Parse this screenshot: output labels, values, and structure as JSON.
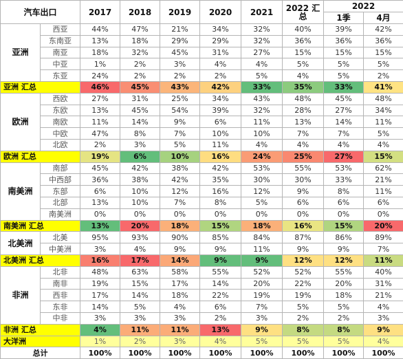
{
  "header": {
    "title": "汽车出口",
    "years": [
      "2017",
      "2018",
      "2019",
      "2020",
      "2021"
    ],
    "summary_2022": "2022 汇总",
    "year_2022": "2022",
    "sub": [
      "1季",
      "4月"
    ]
  },
  "groups": [
    {
      "region": "亚洲",
      "rows": [
        {
          "name": "西亚",
          "values": [
            "44%",
            "47%",
            "21%",
            "34%",
            "32%",
            "40%",
            "39%",
            "42%"
          ]
        },
        {
          "name": "东南亚",
          "values": [
            "13%",
            "18%",
            "29%",
            "29%",
            "32%",
            "36%",
            "36%",
            "36%"
          ]
        },
        {
          "name": "南亚",
          "values": [
            "18%",
            "32%",
            "45%",
            "31%",
            "27%",
            "15%",
            "15%",
            "15%"
          ]
        },
        {
          "name": "中亚",
          "values": [
            "1%",
            "2%",
            "3%",
            "4%",
            "4%",
            "5%",
            "5%",
            "5%"
          ]
        },
        {
          "name": "东亚",
          "values": [
            "24%",
            "2%",
            "2%",
            "2%",
            "5%",
            "4%",
            "5%",
            "2%"
          ]
        }
      ],
      "summary": {
        "label": "亚洲 汇总",
        "values": [
          "46%",
          "45%",
          "43%",
          "42%",
          "33%",
          "35%",
          "33%",
          "41%"
        ],
        "colors": [
          "#f8696b",
          "#f98e73",
          "#fbb57a",
          "#fdd17f",
          "#63be7b",
          "#8ccb7e",
          "#63be7b",
          "#ffe383"
        ]
      }
    },
    {
      "region": "欧洲",
      "rows": [
        {
          "name": "西欧",
          "values": [
            "27%",
            "31%",
            "25%",
            "34%",
            "43%",
            "48%",
            "45%",
            "48%"
          ]
        },
        {
          "name": "东欧",
          "values": [
            "13%",
            "45%",
            "54%",
            "39%",
            "32%",
            "28%",
            "27%",
            "34%"
          ]
        },
        {
          "name": "南欧",
          "values": [
            "11%",
            "14%",
            "9%",
            "6%",
            "11%",
            "13%",
            "14%",
            "11%"
          ]
        },
        {
          "name": "中欧",
          "values": [
            "47%",
            "8%",
            "7%",
            "10%",
            "10%",
            "7%",
            "7%",
            "5%"
          ]
        },
        {
          "name": "北欧",
          "values": [
            "2%",
            "3%",
            "5%",
            "11%",
            "4%",
            "4%",
            "4%",
            "4%"
          ]
        }
      ],
      "summary": {
        "label": "欧洲 汇总",
        "values": [
          "19%",
          "6%",
          "10%",
          "16%",
          "24%",
          "25%",
          "27%",
          "15%"
        ],
        "colors": [
          "#e5e483",
          "#63be7b",
          "#a6d27f",
          "#fedd81",
          "#fa9c75",
          "#f98870",
          "#f8696b",
          "#d3df82"
        ]
      }
    },
    {
      "region": "南美洲",
      "rows": [
        {
          "name": "南部",
          "values": [
            "45%",
            "42%",
            "38%",
            "42%",
            "53%",
            "55%",
            "53%",
            "62%"
          ]
        },
        {
          "name": "中西部",
          "values": [
            "36%",
            "38%",
            "42%",
            "35%",
            "30%",
            "30%",
            "33%",
            "21%"
          ]
        },
        {
          "name": "东部",
          "values": [
            "6%",
            "10%",
            "12%",
            "16%",
            "12%",
            "9%",
            "8%",
            "11%"
          ]
        },
        {
          "name": "北部",
          "values": [
            "13%",
            "10%",
            "7%",
            "8%",
            "5%",
            "6%",
            "6%",
            "6%"
          ]
        },
        {
          "name": "南美洲",
          "values": [
            "0%",
            "0%",
            "0%",
            "0%",
            "0%",
            "0%",
            "0%",
            "0%"
          ]
        }
      ],
      "summary": {
        "label": "南美洲 汇总",
        "values": [
          "13%",
          "20%",
          "18%",
          "15%",
          "18%",
          "16%",
          "15%",
          "20%"
        ],
        "colors": [
          "#63be7b",
          "#f8696b",
          "#fbb079",
          "#b0d580",
          "#fbb079",
          "#e9e583",
          "#b0d580",
          "#f8696b"
        ]
      }
    },
    {
      "region": "北美洲",
      "rows": [
        {
          "name": "北美",
          "values": [
            "95%",
            "93%",
            "90%",
            "85%",
            "84%",
            "87%",
            "86%",
            "89%"
          ]
        },
        {
          "name": "中美洲",
          "values": [
            "3%",
            "4%",
            "9%",
            "9%",
            "11%",
            "9%",
            "9%",
            "7%"
          ]
        }
      ],
      "summary": {
        "label": "北美洲 汇总",
        "values": [
          "16%",
          "17%",
          "14%",
          "9%",
          "9%",
          "12%",
          "12%",
          "11%"
        ],
        "colors": [
          "#f97f6f",
          "#f8696b",
          "#fba877",
          "#63be7b",
          "#63be7b",
          "#fee082",
          "#fee082",
          "#c9db81"
        ]
      }
    },
    {
      "region": "非洲",
      "rows": [
        {
          "name": "北非",
          "values": [
            "48%",
            "63%",
            "58%",
            "55%",
            "52%",
            "52%",
            "55%",
            "40%"
          ]
        },
        {
          "name": "南非",
          "values": [
            "19%",
            "15%",
            "17%",
            "14%",
            "20%",
            "22%",
            "20%",
            "31%"
          ]
        },
        {
          "name": "西非",
          "values": [
            "17%",
            "14%",
            "18%",
            "22%",
            "19%",
            "19%",
            "18%",
            "21%"
          ]
        },
        {
          "name": "东非",
          "values": [
            "14%",
            "5%",
            "4%",
            "6%",
            "7%",
            "5%",
            "5%",
            "4%"
          ]
        },
        {
          "name": "中非",
          "values": [
            "3%",
            "3%",
            "3%",
            "2%",
            "3%",
            "2%",
            "2%",
            "3%"
          ]
        }
      ],
      "summary": {
        "label": "非洲 汇总",
        "values": [
          "4%",
          "11%",
          "11%",
          "13%",
          "9%",
          "8%",
          "8%",
          "9%"
        ],
        "colors": [
          "#63be7b",
          "#fbac78",
          "#fbac78",
          "#f8696b",
          "#fee082",
          "#c4da81",
          "#c4da81",
          "#fee082"
        ]
      }
    }
  ],
  "oceania": {
    "label": "大洋洲",
    "values": [
      "1%",
      "2%",
      "3%",
      "4%",
      "5%",
      "5%",
      "5%",
      "4%"
    ]
  },
  "total": {
    "label": "总计",
    "values": [
      "100%",
      "100%",
      "100%",
      "100%",
      "100%",
      "100%",
      "100%",
      "100%"
    ]
  }
}
